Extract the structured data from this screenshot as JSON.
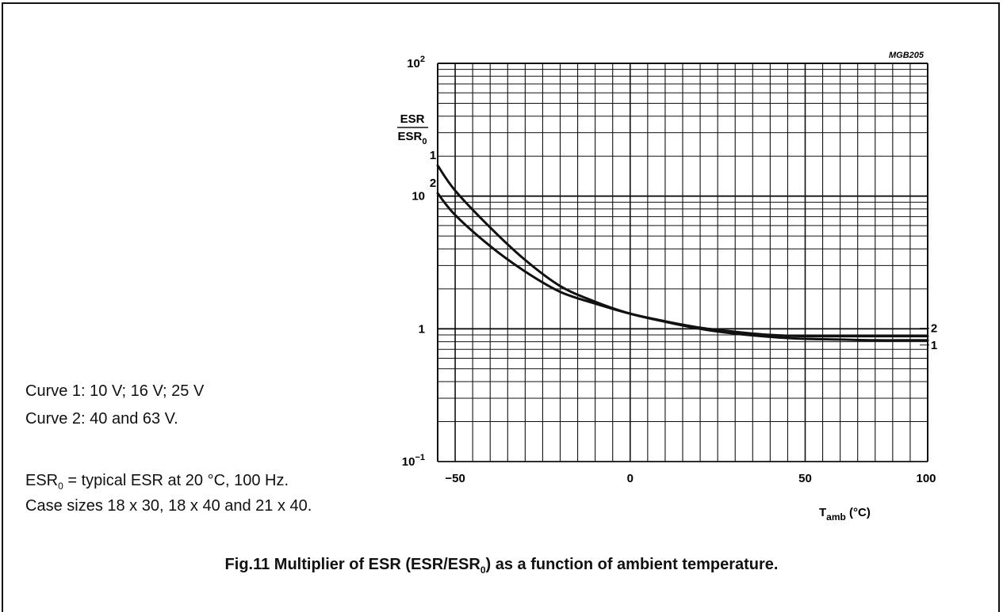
{
  "figure_code": "MGB205",
  "ylabel": {
    "numerator": "ESR",
    "denominator_base": "ESR",
    "denominator_sub": "0"
  },
  "xlabel": {
    "base": "T",
    "sub": "amb",
    "unit": " (°C)"
  },
  "notes": {
    "curve1": "Curve 1: 10 V; 16 V; 25 V",
    "curve2": "Curve 2: 40 and 63 V.",
    "esr0_base": "ESR",
    "esr0_sub": "0",
    "esr0_rest": " = typical ESR at 20 °C, 100 Hz.",
    "case_sizes": "Case sizes 18 x 30, 18 x 40 and 21 x 40."
  },
  "caption": {
    "pre": "Fig.11  Multiplier of ESR (ESR/ESR",
    "sub": "0",
    "post": ") as a function of ambient temperature."
  },
  "chart_data": {
    "type": "line",
    "xscale": "linear",
    "yscale": "log",
    "xlim": [
      -55,
      85
    ],
    "ylim": [
      0.1,
      100
    ],
    "grid": true,
    "x_ticks": [
      {
        "value": -50,
        "label": "−50"
      },
      {
        "value": 0,
        "label": "0"
      },
      {
        "value": 50,
        "label": "50"
      },
      {
        "value": 100,
        "label": "100"
      }
    ],
    "y_ticks": [
      {
        "value": 0.1,
        "base": "10",
        "exp": "−1"
      },
      {
        "value": 1,
        "base": "1",
        "exp": ""
      },
      {
        "value": 10,
        "base": "10",
        "exp": ""
      },
      {
        "value": 100,
        "base": "10",
        "exp": "2"
      }
    ],
    "series": [
      {
        "name": "1",
        "x": [
          -55,
          -50,
          -40,
          -30,
          -20,
          -10,
          0,
          10,
          20,
          30,
          40,
          50,
          60,
          70,
          80,
          85
        ],
        "y": [
          17,
          11,
          5.8,
          3.3,
          2.1,
          1.6,
          1.3,
          1.13,
          1.0,
          0.92,
          0.87,
          0.84,
          0.83,
          0.82,
          0.82,
          0.82
        ]
      },
      {
        "name": "2",
        "x": [
          -55,
          -50,
          -40,
          -30,
          -20,
          -10,
          0,
          10,
          20,
          30,
          40,
          50,
          60,
          70,
          80,
          85
        ],
        "y": [
          10.5,
          7.2,
          4.2,
          2.7,
          1.9,
          1.55,
          1.3,
          1.14,
          1.02,
          0.95,
          0.9,
          0.88,
          0.88,
          0.88,
          0.88,
          0.88
        ]
      }
    ]
  }
}
